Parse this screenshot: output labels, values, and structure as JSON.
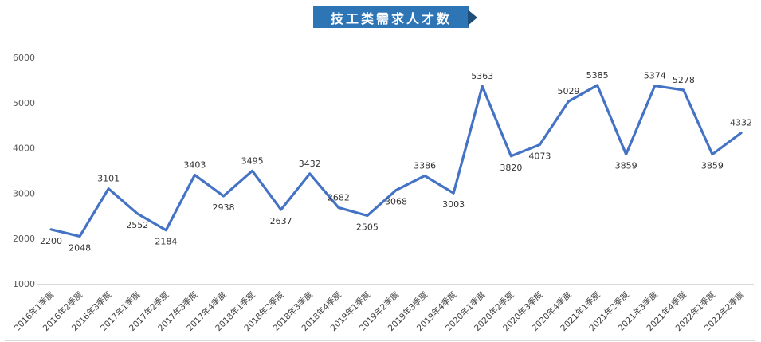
{
  "title_banner": {
    "text": "技工类需求人才数",
    "background": "#2E75B6",
    "fold_color": "#1F4E79",
    "text_color": "#FFFFFF"
  },
  "chart_data": {
    "type": "line",
    "title": "技工类需求人才数",
    "categories": [
      "2016年1季度",
      "2016年2季度",
      "2016年3季度",
      "2017年1季度",
      "2017年2季度",
      "2017年3季度",
      "2017年4季度",
      "2018年1季度",
      "2018年2季度",
      "2018年3季度",
      "2018年4季度",
      "2019年1季度",
      "2019年2季度",
      "2019年3季度",
      "2019年4季度",
      "2020年1季度",
      "2020年2季度",
      "2020年3季度",
      "2020年4季度",
      "2021年1季度",
      "2021年2季度",
      "2021年3季度",
      "2021年4季度",
      "2022年1季度",
      "2022年2季度"
    ],
    "values": [
      2200,
      2048,
      3101,
      2552,
      2184,
      3403,
      2938,
      3495,
      2637,
      3432,
      2682,
      2505,
      3068,
      3386,
      3003,
      5363,
      3820,
      4073,
      5029,
      5385,
      3859,
      5374,
      5278,
      3859,
      4332
    ],
    "label_placement": [
      "below",
      "below",
      "above",
      "below",
      "below",
      "above",
      "below",
      "above",
      "below",
      "above",
      "above",
      "below",
      "below",
      "above",
      "below",
      "above",
      "below",
      "below",
      "above",
      "above",
      "below",
      "above",
      "above",
      "below",
      "above"
    ],
    "xlabel": "",
    "ylabel": "",
    "ylim": [
      1000,
      6000
    ],
    "y_ticks": [
      1000,
      2000,
      3000,
      4000,
      5000,
      6000
    ],
    "grid": false,
    "legend": "none",
    "line_color": "#4472C4",
    "data_label_color": "#333333",
    "axis_label_color": "#595959"
  }
}
